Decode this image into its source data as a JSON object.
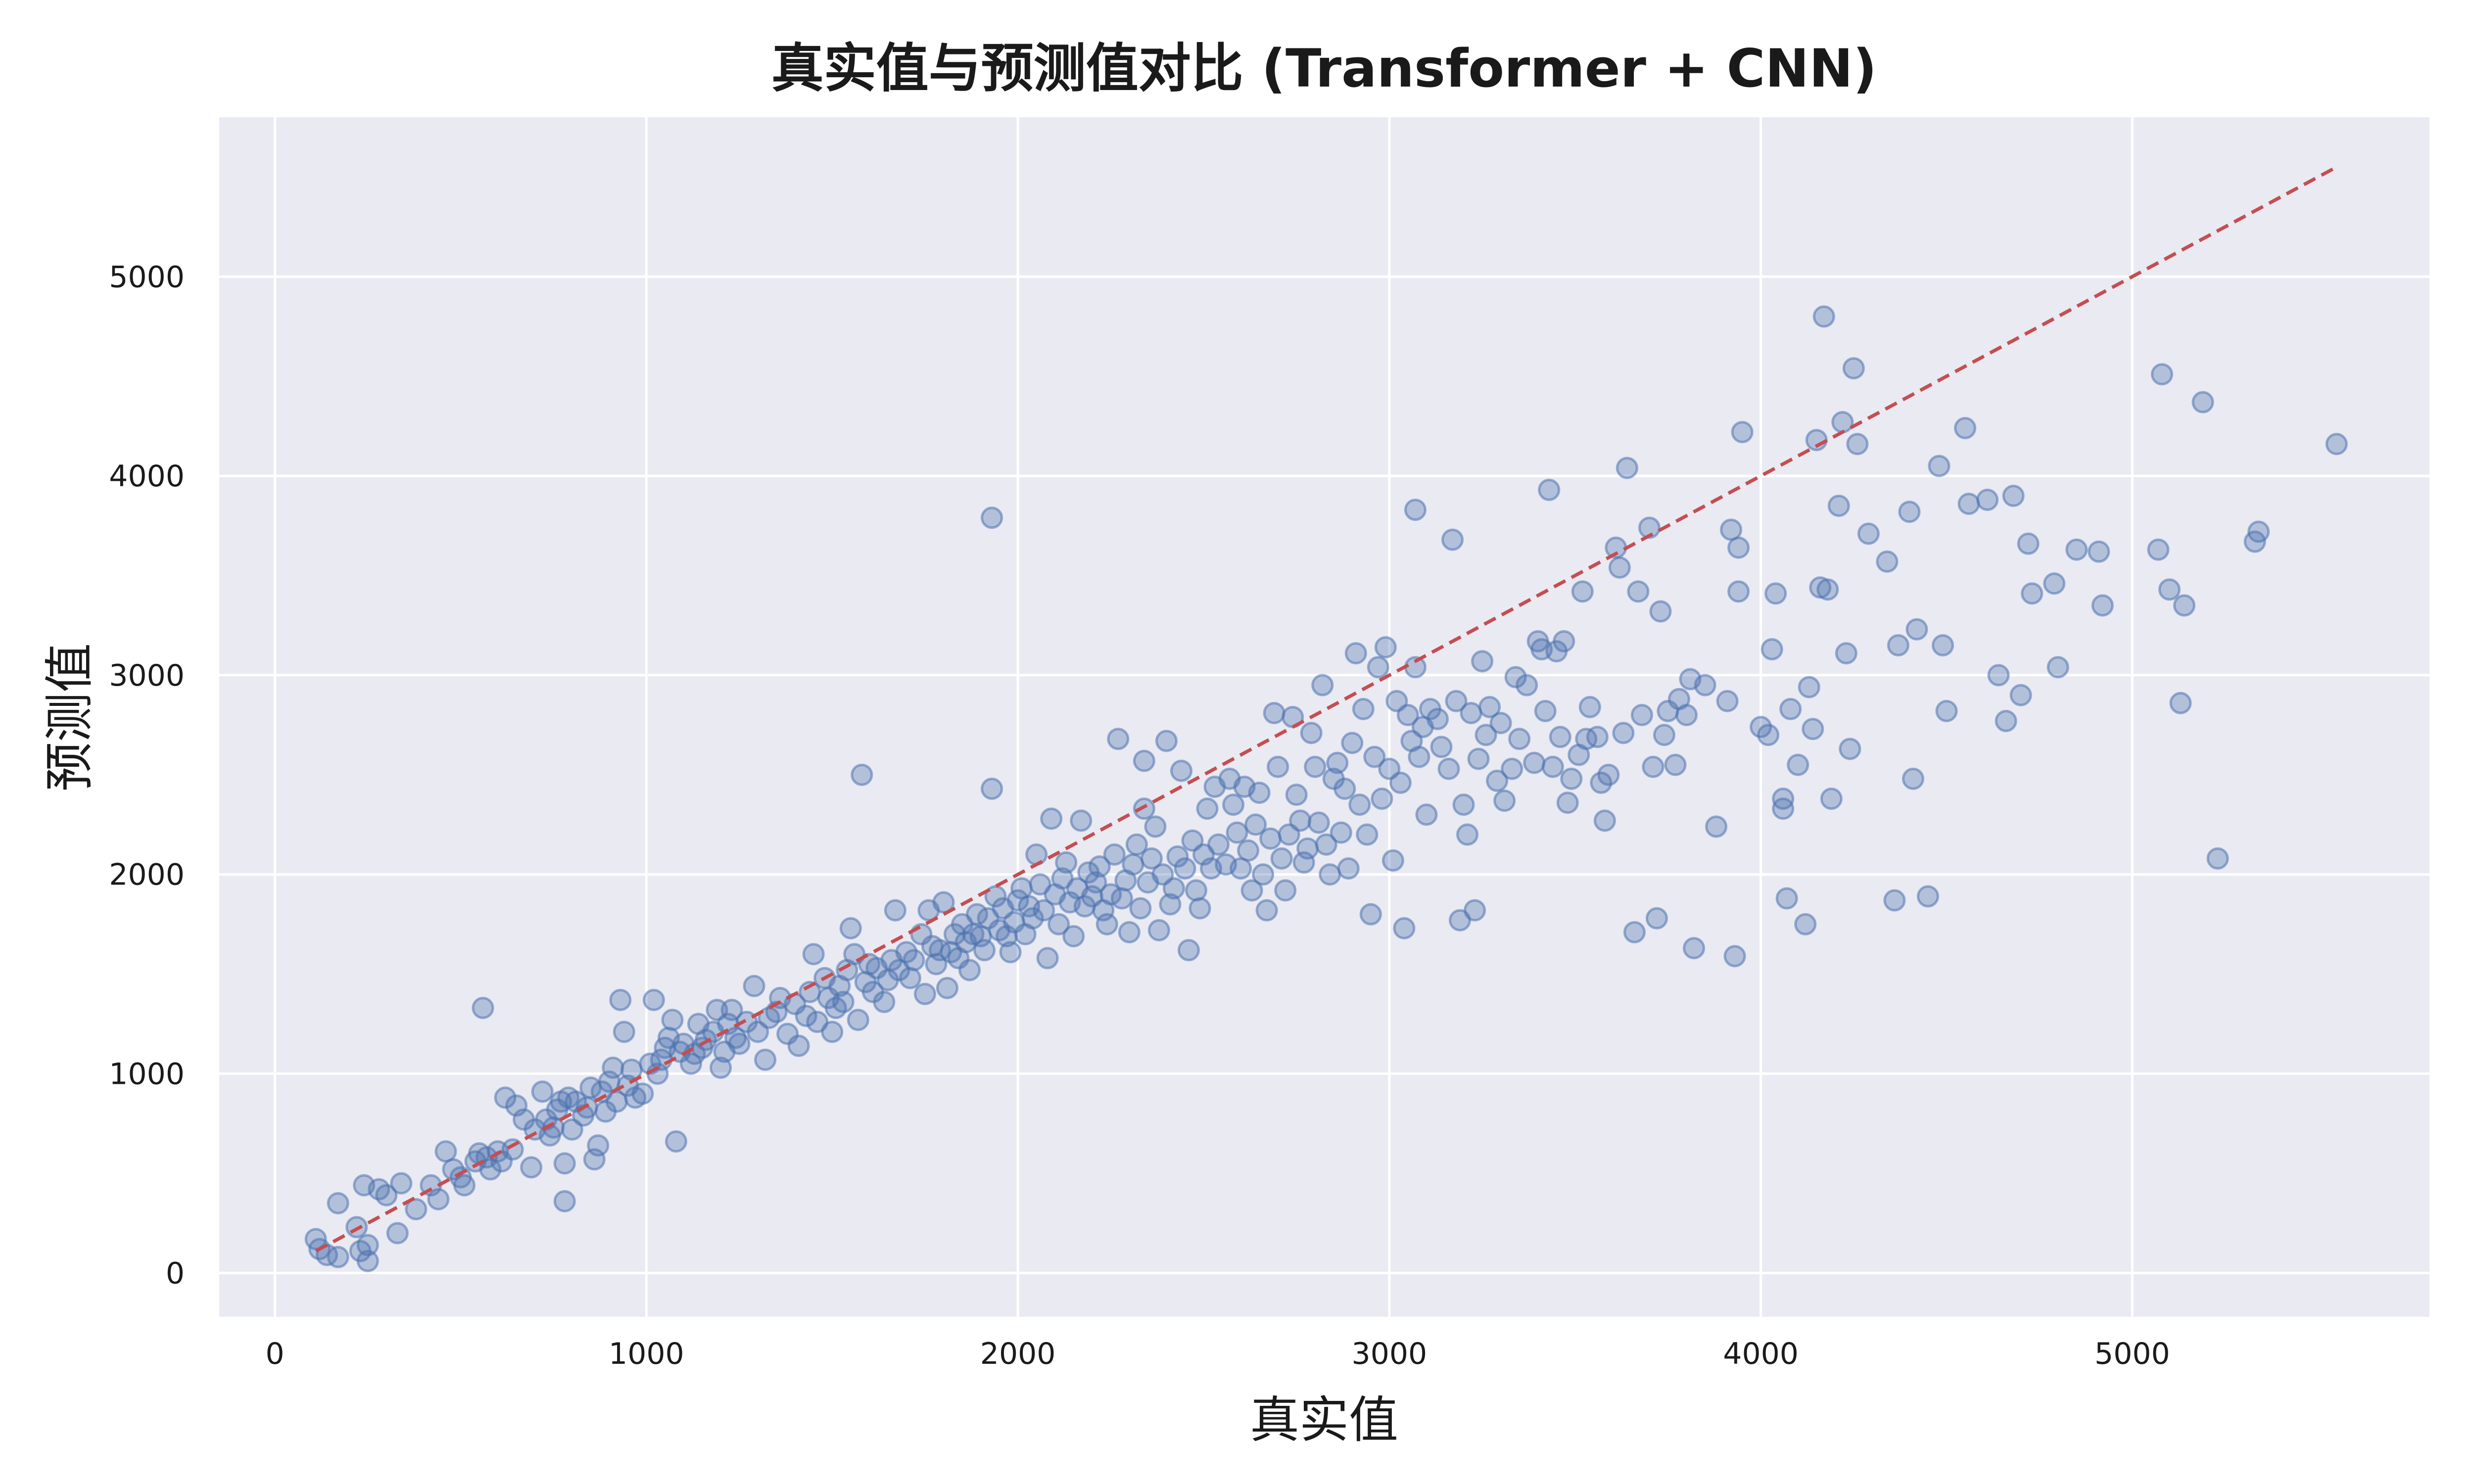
{
  "chart_data": {
    "type": "scatter",
    "title": "真实值与预测值对比 (Transformer + CNN)",
    "xlabel": "真实值",
    "ylabel": "预测值",
    "xlim": [
      -150,
      5800
    ],
    "ylim": [
      -220,
      5800
    ],
    "xticks": [
      0,
      1000,
      2000,
      3000,
      4000,
      5000
    ],
    "yticks": [
      0,
      1000,
      2000,
      3000,
      4000,
      5000
    ],
    "grid": true,
    "point_color": "#4C72B0",
    "line_color": "#C44E52",
    "background_color": "#EAEAF2",
    "reference_line": {
      "style": "dashed",
      "x": [
        110,
        5550
      ],
      "y": [
        110,
        5550
      ]
    },
    "points": [
      [
        110,
        170
      ],
      [
        120,
        120
      ],
      [
        140,
        90
      ],
      [
        170,
        80
      ],
      [
        170,
        350
      ],
      [
        220,
        230
      ],
      [
        230,
        110
      ],
      [
        240,
        440
      ],
      [
        250,
        60
      ],
      [
        250,
        140
      ],
      [
        280,
        420
      ],
      [
        300,
        390
      ],
      [
        330,
        200
      ],
      [
        340,
        450
      ],
      [
        380,
        320
      ],
      [
        420,
        440
      ],
      [
        440,
        370
      ],
      [
        460,
        610
      ],
      [
        480,
        520
      ],
      [
        500,
        480
      ],
      [
        510,
        440
      ],
      [
        540,
        560
      ],
      [
        550,
        600
      ],
      [
        560,
        1330
      ],
      [
        570,
        580
      ],
      [
        580,
        520
      ],
      [
        600,
        610
      ],
      [
        610,
        560
      ],
      [
        620,
        880
      ],
      [
        640,
        620
      ],
      [
        650,
        840
      ],
      [
        670,
        770
      ],
      [
        690,
        530
      ],
      [
        700,
        720
      ],
      [
        720,
        910
      ],
      [
        730,
        770
      ],
      [
        740,
        690
      ],
      [
        750,
        730
      ],
      [
        760,
        820
      ],
      [
        770,
        860
      ],
      [
        780,
        360
      ],
      [
        780,
        550
      ],
      [
        790,
        880
      ],
      [
        800,
        720
      ],
      [
        810,
        860
      ],
      [
        830,
        790
      ],
      [
        840,
        830
      ],
      [
        850,
        930
      ],
      [
        860,
        570
      ],
      [
        870,
        640
      ],
      [
        880,
        910
      ],
      [
        890,
        810
      ],
      [
        900,
        960
      ],
      [
        910,
        1030
      ],
      [
        920,
        860
      ],
      [
        930,
        1370
      ],
      [
        940,
        1210
      ],
      [
        950,
        940
      ],
      [
        960,
        1020
      ],
      [
        970,
        880
      ],
      [
        990,
        900
      ],
      [
        1010,
        1050
      ],
      [
        1020,
        1370
      ],
      [
        1030,
        1000
      ],
      [
        1040,
        1070
      ],
      [
        1050,
        1130
      ],
      [
        1060,
        1180
      ],
      [
        1070,
        1270
      ],
      [
        1080,
        660
      ],
      [
        1090,
        1110
      ],
      [
        1100,
        1150
      ],
      [
        1120,
        1050
      ],
      [
        1130,
        1100
      ],
      [
        1140,
        1250
      ],
      [
        1150,
        1130
      ],
      [
        1160,
        1170
      ],
      [
        1180,
        1210
      ],
      [
        1190,
        1320
      ],
      [
        1200,
        1030
      ],
      [
        1210,
        1110
      ],
      [
        1220,
        1250
      ],
      [
        1230,
        1320
      ],
      [
        1240,
        1180
      ],
      [
        1250,
        1150
      ],
      [
        1270,
        1260
      ],
      [
        1290,
        1440
      ],
      [
        1300,
        1210
      ],
      [
        1320,
        1070
      ],
      [
        1330,
        1280
      ],
      [
        1350,
        1310
      ],
      [
        1360,
        1380
      ],
      [
        1380,
        1200
      ],
      [
        1400,
        1350
      ],
      [
        1410,
        1140
      ],
      [
        1430,
        1290
      ],
      [
        1440,
        1410
      ],
      [
        1450,
        1600
      ],
      [
        1460,
        1260
      ],
      [
        1480,
        1480
      ],
      [
        1490,
        1380
      ],
      [
        1500,
        1210
      ],
      [
        1510,
        1330
      ],
      [
        1520,
        1440
      ],
      [
        1530,
        1360
      ],
      [
        1540,
        1520
      ],
      [
        1550,
        1730
      ],
      [
        1560,
        1600
      ],
      [
        1570,
        1270
      ],
      [
        1580,
        2500
      ],
      [
        1590,
        1460
      ],
      [
        1600,
        1550
      ],
      [
        1610,
        1410
      ],
      [
        1620,
        1530
      ],
      [
        1640,
        1360
      ],
      [
        1650,
        1470
      ],
      [
        1660,
        1570
      ],
      [
        1670,
        1820
      ],
      [
        1680,
        1520
      ],
      [
        1700,
        1610
      ],
      [
        1710,
        1480
      ],
      [
        1720,
        1570
      ],
      [
        1740,
        1700
      ],
      [
        1750,
        1400
      ],
      [
        1760,
        1820
      ],
      [
        1770,
        1640
      ],
      [
        1780,
        1550
      ],
      [
        1790,
        1620
      ],
      [
        1800,
        1860
      ],
      [
        1810,
        1430
      ],
      [
        1820,
        1610
      ],
      [
        1830,
        1700
      ],
      [
        1840,
        1580
      ],
      [
        1850,
        1750
      ],
      [
        1860,
        1660
      ],
      [
        1870,
        1520
      ],
      [
        1880,
        1700
      ],
      [
        1890,
        1800
      ],
      [
        1900,
        1690
      ],
      [
        1910,
        1620
      ],
      [
        1920,
        1780
      ],
      [
        1930,
        3790
      ],
      [
        1930,
        2430
      ],
      [
        1940,
        1890
      ],
      [
        1950,
        1720
      ],
      [
        1960,
        1830
      ],
      [
        1970,
        1690
      ],
      [
        1980,
        1610
      ],
      [
        1990,
        1760
      ],
      [
        2000,
        1870
      ],
      [
        2010,
        1930
      ],
      [
        2020,
        1700
      ],
      [
        2030,
        1840
      ],
      [
        2040,
        1780
      ],
      [
        2050,
        2100
      ],
      [
        2060,
        1950
      ],
      [
        2070,
        1820
      ],
      [
        2080,
        1580
      ],
      [
        2090,
        2280
      ],
      [
        2100,
        1900
      ],
      [
        2110,
        1750
      ],
      [
        2120,
        1980
      ],
      [
        2130,
        2060
      ],
      [
        2140,
        1860
      ],
      [
        2150,
        1690
      ],
      [
        2160,
        1930
      ],
      [
        2170,
        2270
      ],
      [
        2180,
        1840
      ],
      [
        2190,
        2010
      ],
      [
        2200,
        1890
      ],
      [
        2210,
        1960
      ],
      [
        2220,
        2040
      ],
      [
        2230,
        1820
      ],
      [
        2240,
        1750
      ],
      [
        2250,
        1900
      ],
      [
        2260,
        2100
      ],
      [
        2270,
        2680
      ],
      [
        2280,
        1880
      ],
      [
        2290,
        1970
      ],
      [
        2300,
        1710
      ],
      [
        2310,
        2050
      ],
      [
        2320,
        2150
      ],
      [
        2330,
        1830
      ],
      [
        2340,
        2570
      ],
      [
        2340,
        2330
      ],
      [
        2350,
        1960
      ],
      [
        2360,
        2080
      ],
      [
        2370,
        2240
      ],
      [
        2380,
        1720
      ],
      [
        2390,
        2000
      ],
      [
        2400,
        2670
      ],
      [
        2410,
        1850
      ],
      [
        2420,
        1930
      ],
      [
        2430,
        2090
      ],
      [
        2440,
        2520
      ],
      [
        2450,
        2030
      ],
      [
        2460,
        1620
      ],
      [
        2470,
        2170
      ],
      [
        2480,
        1920
      ],
      [
        2490,
        1830
      ],
      [
        2500,
        2100
      ],
      [
        2510,
        2330
      ],
      [
        2520,
        2030
      ],
      [
        2530,
        2440
      ],
      [
        2540,
        2150
      ],
      [
        2560,
        2050
      ],
      [
        2570,
        2480
      ],
      [
        2580,
        2350
      ],
      [
        2590,
        2210
      ],
      [
        2600,
        2030
      ],
      [
        2610,
        2440
      ],
      [
        2620,
        2120
      ],
      [
        2630,
        1920
      ],
      [
        2640,
        2250
      ],
      [
        2650,
        2410
      ],
      [
        2660,
        2000
      ],
      [
        2670,
        1820
      ],
      [
        2680,
        2180
      ],
      [
        2690,
        2810
      ],
      [
        2700,
        2540
      ],
      [
        2710,
        2080
      ],
      [
        2720,
        1920
      ],
      [
        2730,
        2200
      ],
      [
        2740,
        2790
      ],
      [
        2750,
        2400
      ],
      [
        2760,
        2270
      ],
      [
        2770,
        2060
      ],
      [
        2780,
        2130
      ],
      [
        2790,
        2710
      ],
      [
        2800,
        2540
      ],
      [
        2810,
        2260
      ],
      [
        2820,
        2950
      ],
      [
        2830,
        2150
      ],
      [
        2840,
        2000
      ],
      [
        2850,
        2480
      ],
      [
        2860,
        2560
      ],
      [
        2870,
        2210
      ],
      [
        2880,
        2430
      ],
      [
        2890,
        2030
      ],
      [
        2900,
        2660
      ],
      [
        2910,
        3110
      ],
      [
        2920,
        2350
      ],
      [
        2930,
        2830
      ],
      [
        2940,
        2200
      ],
      [
        2950,
        1800
      ],
      [
        2960,
        2590
      ],
      [
        2970,
        3040
      ],
      [
        2980,
        2380
      ],
      [
        2990,
        3140
      ],
      [
        3000,
        2530
      ],
      [
        3010,
        2070
      ],
      [
        3020,
        2870
      ],
      [
        3030,
        2460
      ],
      [
        3040,
        1730
      ],
      [
        3050,
        2800
      ],
      [
        3060,
        2670
      ],
      [
        3070,
        3830
      ],
      [
        3070,
        3040
      ],
      [
        3080,
        2590
      ],
      [
        3090,
        2740
      ],
      [
        3100,
        2300
      ],
      [
        3110,
        2830
      ],
      [
        3130,
        2780
      ],
      [
        3140,
        2640
      ],
      [
        3160,
        2530
      ],
      [
        3170,
        3680
      ],
      [
        3180,
        2870
      ],
      [
        3190,
        1770
      ],
      [
        3200,
        2350
      ],
      [
        3210,
        2200
      ],
      [
        3220,
        2810
      ],
      [
        3230,
        1820
      ],
      [
        3240,
        2580
      ],
      [
        3250,
        3070
      ],
      [
        3260,
        2700
      ],
      [
        3270,
        2840
      ],
      [
        3290,
        2470
      ],
      [
        3300,
        2760
      ],
      [
        3310,
        2370
      ],
      [
        3330,
        2530
      ],
      [
        3340,
        2990
      ],
      [
        3350,
        2680
      ],
      [
        3370,
        2950
      ],
      [
        3390,
        2560
      ],
      [
        3400,
        3170
      ],
      [
        3410,
        3130
      ],
      [
        3420,
        2820
      ],
      [
        3430,
        3930
      ],
      [
        3440,
        2540
      ],
      [
        3450,
        3120
      ],
      [
        3460,
        2690
      ],
      [
        3470,
        3170
      ],
      [
        3480,
        2360
      ],
      [
        3490,
        2480
      ],
      [
        3510,
        2600
      ],
      [
        3520,
        3420
      ],
      [
        3530,
        2680
      ],
      [
        3540,
        2840
      ],
      [
        3560,
        2690
      ],
      [
        3570,
        2460
      ],
      [
        3580,
        2270
      ],
      [
        3590,
        2500
      ],
      [
        3610,
        3640
      ],
      [
        3620,
        3540
      ],
      [
        3630,
        2710
      ],
      [
        3640,
        4040
      ],
      [
        3660,
        1710
      ],
      [
        3670,
        3420
      ],
      [
        3680,
        2800
      ],
      [
        3700,
        3740
      ],
      [
        3710,
        2540
      ],
      [
        3720,
        1780
      ],
      [
        3730,
        3320
      ],
      [
        3740,
        2700
      ],
      [
        3750,
        2820
      ],
      [
        3770,
        2550
      ],
      [
        3780,
        2880
      ],
      [
        3800,
        2800
      ],
      [
        3810,
        2980
      ],
      [
        3820,
        1630
      ],
      [
        3850,
        2950
      ],
      [
        3880,
        2240
      ],
      [
        3910,
        2870
      ],
      [
        3920,
        3730
      ],
      [
        3930,
        1590
      ],
      [
        3940,
        3420
      ],
      [
        3940,
        3640
      ],
      [
        3950,
        4220
      ],
      [
        4000,
        2740
      ],
      [
        4020,
        2700
      ],
      [
        4030,
        3130
      ],
      [
        4040,
        3410
      ],
      [
        4060,
        2330
      ],
      [
        4060,
        2380
      ],
      [
        4070,
        1880
      ],
      [
        4080,
        2830
      ],
      [
        4100,
        2550
      ],
      [
        4120,
        1750
      ],
      [
        4130,
        2940
      ],
      [
        4140,
        2730
      ],
      [
        4150,
        4180
      ],
      [
        4160,
        3440
      ],
      [
        4170,
        4800
      ],
      [
        4180,
        3430
      ],
      [
        4190,
        2380
      ],
      [
        4210,
        3850
      ],
      [
        4220,
        4270
      ],
      [
        4230,
        3110
      ],
      [
        4240,
        2630
      ],
      [
        4250,
        4540
      ],
      [
        4260,
        4160
      ],
      [
        4290,
        3710
      ],
      [
        4340,
        3570
      ],
      [
        4360,
        1870
      ],
      [
        4370,
        3150
      ],
      [
        4400,
        3820
      ],
      [
        4410,
        2480
      ],
      [
        4420,
        3230
      ],
      [
        4450,
        1890
      ],
      [
        4480,
        4050
      ],
      [
        4490,
        3150
      ],
      [
        4500,
        2820
      ],
      [
        4550,
        4240
      ],
      [
        4560,
        3860
      ],
      [
        4610,
        3880
      ],
      [
        4640,
        3000
      ],
      [
        4660,
        2770
      ],
      [
        4680,
        3900
      ],
      [
        4700,
        2900
      ],
      [
        4720,
        3660
      ],
      [
        4730,
        3410
      ],
      [
        4790,
        3460
      ],
      [
        4800,
        3040
      ],
      [
        4850,
        3630
      ],
      [
        4910,
        3620
      ],
      [
        4920,
        3350
      ],
      [
        5070,
        3630
      ],
      [
        5080,
        4510
      ],
      [
        5100,
        3430
      ],
      [
        5130,
        2860
      ],
      [
        5140,
        3350
      ],
      [
        5190,
        4370
      ],
      [
        5230,
        2080
      ],
      [
        5330,
        3670
      ],
      [
        5340,
        3720
      ],
      [
        5550,
        4160
      ]
    ]
  }
}
